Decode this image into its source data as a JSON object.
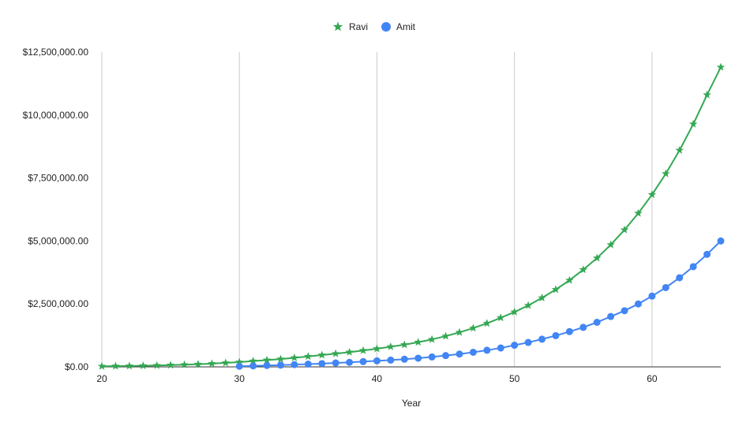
{
  "chart_data": {
    "type": "line",
    "title": "",
    "xlabel": "Year",
    "ylabel": "",
    "xlim": [
      20,
      65
    ],
    "ylim": [
      0,
      12500000
    ],
    "x_ticks": [
      "20",
      "30",
      "40",
      "50",
      "60"
    ],
    "y_ticks": [
      "$0.00",
      "$2,500,000.00",
      "$5,000,000.00",
      "$7,500,000.00",
      "$10,000,000.00",
      "$12,500,000.00"
    ],
    "grid": "vertical",
    "legend_position": "top",
    "series": [
      {
        "name": "Ravi",
        "color": "#34a853",
        "marker": "star",
        "x": [
          20,
          21,
          22,
          23,
          24,
          25,
          26,
          27,
          28,
          29,
          30,
          31,
          32,
          33,
          34,
          35,
          36,
          37,
          38,
          39,
          40,
          41,
          42,
          43,
          44,
          45,
          46,
          47,
          48,
          49,
          50,
          51,
          52,
          53,
          54,
          55,
          56,
          57,
          58,
          59,
          60,
          61,
          62,
          63,
          64,
          65
        ],
        "values": [
          25000,
          30000,
          36000,
          45000,
          55000,
          70000,
          85000,
          105000,
          130000,
          160000,
          190000,
          230000,
          270000,
          310000,
          360000,
          415000,
          470000,
          525000,
          585000,
          650000,
          720000,
          800000,
          880000,
          980000,
          1090000,
          1220000,
          1370000,
          1540000,
          1730000,
          1950000,
          2180000,
          2440000,
          2740000,
          3070000,
          3440000,
          3860000,
          4320000,
          4850000,
          5440000,
          6100000,
          6840000,
          7670000,
          8600000,
          9640000,
          10800000,
          11900000
        ]
      },
      {
        "name": "Amit",
        "color": "#4285f4",
        "marker": "circle",
        "x": [
          30,
          31,
          32,
          33,
          34,
          35,
          36,
          37,
          38,
          39,
          40,
          41,
          42,
          43,
          44,
          45,
          46,
          47,
          48,
          49,
          50,
          51,
          52,
          53,
          54,
          55,
          56,
          57,
          58,
          59,
          60,
          61,
          62,
          63,
          64,
          65
        ],
        "values": [
          25000,
          40000,
          55000,
          70000,
          90000,
          110000,
          130000,
          155000,
          180000,
          210000,
          240000,
          270000,
          305000,
          345000,
          395000,
          450000,
          510000,
          580000,
          660000,
          750000,
          860000,
          970000,
          1100000,
          1240000,
          1400000,
          1570000,
          1770000,
          2000000,
          2230000,
          2500000,
          2810000,
          3150000,
          3540000,
          3980000,
          4470000,
          5000000
        ]
      }
    ]
  }
}
